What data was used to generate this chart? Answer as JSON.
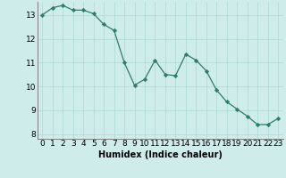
{
  "x": [
    0,
    1,
    2,
    3,
    4,
    5,
    6,
    7,
    8,
    9,
    10,
    11,
    12,
    13,
    14,
    15,
    16,
    17,
    18,
    19,
    20,
    21,
    22,
    23
  ],
  "y": [
    13.0,
    13.3,
    13.4,
    13.2,
    13.2,
    13.05,
    12.6,
    12.35,
    11.0,
    10.05,
    10.3,
    11.1,
    10.5,
    10.45,
    11.35,
    11.1,
    10.65,
    9.85,
    9.35,
    9.05,
    8.75,
    8.4,
    8.4,
    8.65
  ],
  "line_color": "#2d7d6e",
  "marker": "D",
  "marker_size": 2.2,
  "background_color": "#ceecea",
  "grid_color": "#afd8d2",
  "xlabel": "Humidex (Indice chaleur)",
  "ylabel": "",
  "ylim": [
    7.8,
    13.55
  ],
  "xlim": [
    -0.5,
    23.5
  ],
  "yticks": [
    8,
    9,
    10,
    11,
    12,
    13
  ],
  "xticks": [
    0,
    1,
    2,
    3,
    4,
    5,
    6,
    7,
    8,
    9,
    10,
    11,
    12,
    13,
    14,
    15,
    16,
    17,
    18,
    19,
    20,
    21,
    22,
    23
  ],
  "xlabel_fontsize": 7,
  "tick_fontsize": 6.5
}
